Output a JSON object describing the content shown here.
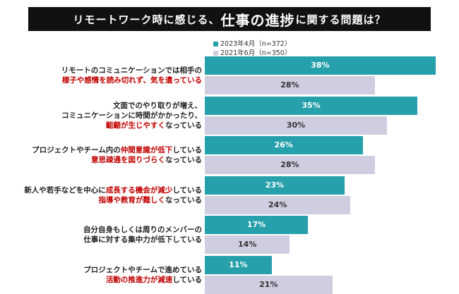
{
  "title": {
    "part1": "リモートワーク時に感じる、",
    "part2": "仕事の進捗",
    "part3": "に関する問題は？"
  },
  "legend": [
    {
      "label": "2023年4月（n=372）",
      "color": "#26a0aa"
    },
    {
      "label": "2021年6月（n=350）",
      "color": "#cfcde0"
    }
  ],
  "rows": [
    {
      "lines": [
        [
          {
            "t": "リモートのコミュニケーションでは相手の",
            "red": false
          }
        ],
        [
          {
            "t": "様子や感情を読み切れず、気を遣っている",
            "red": true
          }
        ]
      ]
    },
    {
      "lines": [
        [
          {
            "t": "文面でのやり取りが増え、",
            "red": false
          }
        ],
        [
          {
            "t": "コミュニケーションに時間がかかったり、",
            "red": false
          }
        ],
        [
          {
            "t": "齟齬が生じやすく",
            "red": true
          },
          {
            "t": "なっている",
            "red": false
          }
        ]
      ]
    },
    {
      "lines": [
        [
          {
            "t": "プロジェクトやチーム内の",
            "red": false
          },
          {
            "t": "仲間意識が低下",
            "red": true
          },
          {
            "t": "している",
            "red": false
          }
        ],
        [
          {
            "t": "意思疎通を図りづらく",
            "red": true
          },
          {
            "t": "なっている",
            "red": false
          }
        ]
      ]
    },
    {
      "lines": [
        [
          {
            "t": "新人や若手などを中心に",
            "red": false
          },
          {
            "t": "成長する機会が減少",
            "red": true
          },
          {
            "t": "している",
            "red": false
          }
        ],
        [
          {
            "t": "指導や教育が難しく",
            "red": true
          },
          {
            "t": "なっている",
            "red": false
          }
        ]
      ]
    },
    {
      "lines": [
        [
          {
            "t": "自分自身もしくは周りのメンバーの",
            "red": false
          }
        ],
        [
          {
            "t": "仕事に対する集中力が低下している",
            "red": false
          }
        ]
      ]
    },
    {
      "lines": [
        [
          {
            "t": "プロジェクトやチームで進めている",
            "red": false
          }
        ],
        [
          {
            "t": "活動の推進力が減速",
            "red": true
          },
          {
            "t": "している",
            "red": false
          }
        ]
      ]
    }
  ],
  "chart_data": {
    "type": "bar",
    "orientation": "horizontal",
    "categories": [
      "リモートのコミュニケーションでは相手の様子や感情を読み切れず、気を遣っている",
      "文面でのやり取りが増え、コミュニケーションに時間がかかったり、齟齬が生じやすくなっている",
      "プロジェクトやチーム内の仲間意識が低下している意思疎通を図りづらくなっている",
      "新人や若手などを中心に成長する機会が減少している指導や教育が難しくなっている",
      "自分自身もしくは周りのメンバーの仕事に対する集中力が低下している",
      "プロジェクトやチームで進めている活動の推進力が減速している"
    ],
    "series": [
      {
        "name": "2023年4月（n=372）",
        "values": [
          38,
          35,
          26,
          23,
          17,
          11
        ]
      },
      {
        "name": "2021年6月（n=350）",
        "values": [
          28,
          30,
          28,
          24,
          14,
          21
        ]
      }
    ],
    "unit": "%",
    "xlim": [
      0,
      40
    ],
    "grid": false,
    "legend_position": "top-left"
  }
}
